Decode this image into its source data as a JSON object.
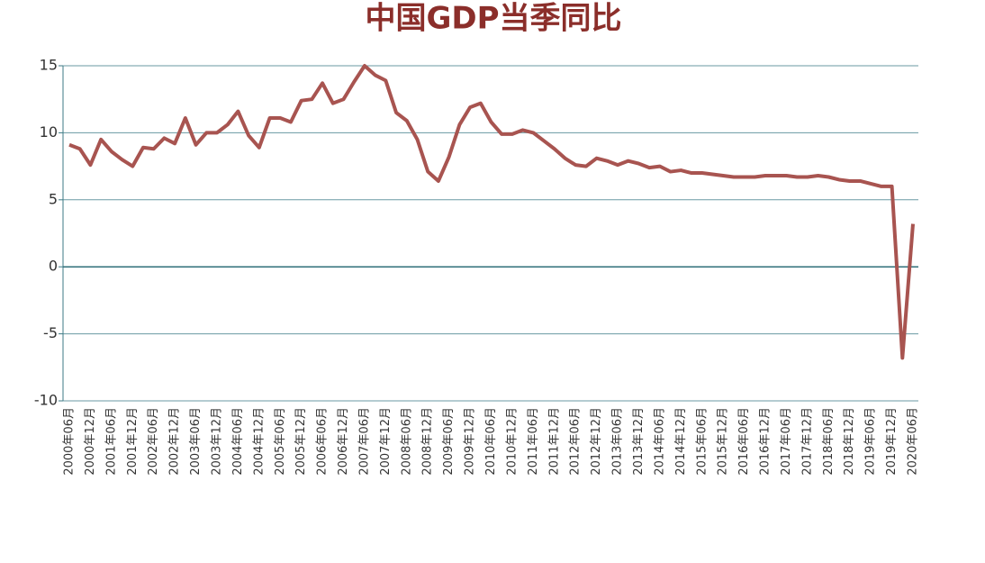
{
  "chart_data": {
    "type": "line",
    "title": "中国GDP当季同比",
    "categories": [
      "2000年06月",
      null,
      "2000年12月",
      null,
      "2001年06月",
      null,
      "2001年12月",
      null,
      "2002年06月",
      null,
      "2002年12月",
      null,
      "2003年06月",
      null,
      "2003年12月",
      null,
      "2004年06月",
      null,
      "2004年12月",
      null,
      "2005年06月",
      null,
      "2005年12月",
      null,
      "2006年06月",
      null,
      "2006年12月",
      null,
      "2007年06月",
      null,
      "2007年12月",
      null,
      "2008年06月",
      null,
      "2008年12月",
      null,
      "2009年06月",
      null,
      "2009年12月",
      null,
      "2010年06月",
      null,
      "2010年12月",
      null,
      "2011年06月",
      null,
      "2011年12月",
      null,
      "2012年06月",
      null,
      "2012年12月",
      null,
      "2013年06月",
      null,
      "2013年12月",
      null,
      "2014年06月",
      null,
      "2014年12月",
      null,
      "2015年06月",
      null,
      "2015年12月",
      null,
      "2016年06月",
      null,
      "2016年12月",
      null,
      "2017年06月",
      null,
      "2017年12月",
      null,
      "2018年06月",
      null,
      "2018年12月",
      null,
      "2019年06月",
      null,
      "2019年12月",
      null,
      "2020年06月"
    ],
    "values": [
      9.1,
      8.8,
      7.6,
      9.5,
      8.6,
      8.0,
      7.5,
      8.9,
      8.8,
      9.6,
      9.2,
      11.1,
      9.1,
      10.0,
      10.0,
      10.6,
      11.6,
      9.8,
      8.9,
      11.1,
      11.1,
      10.8,
      12.4,
      12.5,
      13.7,
      12.2,
      12.5,
      13.8,
      15.0,
      14.3,
      13.9,
      11.5,
      10.9,
      9.5,
      7.1,
      6.4,
      8.2,
      10.6,
      11.9,
      12.2,
      10.8,
      9.9,
      9.9,
      10.2,
      10.0,
      9.4,
      8.8,
      8.1,
      7.6,
      7.5,
      8.1,
      7.9,
      7.6,
      7.9,
      7.7,
      7.4,
      7.5,
      7.1,
      7.2,
      7.0,
      7.0,
      6.9,
      6.8,
      6.7,
      6.7,
      6.7,
      6.8,
      6.8,
      6.8,
      6.7,
      6.7,
      6.8,
      6.7,
      6.5,
      6.4,
      6.4,
      6.2,
      6.0,
      6.0,
      -6.8,
      3.2
    ],
    "color": "#a85450",
    "ylim": [
      -10,
      15
    ],
    "yticks": [
      -10,
      -5,
      0,
      5,
      10,
      15
    ],
    "grid": true
  }
}
